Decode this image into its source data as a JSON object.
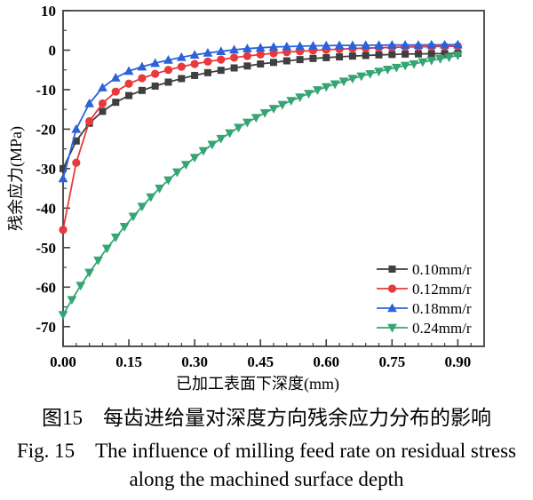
{
  "figure": {
    "caption_zh": "图15　每齿进给量对深度方向残余应力分布的影响",
    "caption_en_line1": "Fig. 15　The influence of milling feed rate on residual stress",
    "caption_en_line2": "along the machined surface depth"
  },
  "chart_data": {
    "type": "line",
    "title": "",
    "xlabel": "已加工表面下深度(mm)",
    "ylabel": "残余应力(MPa)",
    "xlim": [
      0,
      0.96
    ],
    "ylim": [
      -75,
      10
    ],
    "x_major_ticks": [
      0,
      0.15,
      0.3,
      0.45,
      0.6,
      0.75,
      0.9
    ],
    "x_tick_labels": [
      "0.00",
      "0.15",
      "0.30",
      "0.45",
      "0.60",
      "0.75",
      "0.90"
    ],
    "x_minor_step": 0.03,
    "y_major_ticks": [
      10,
      0,
      -10,
      -20,
      -30,
      -40,
      -50,
      -60,
      -70
    ],
    "y_tick_labels": [
      "10",
      "0",
      "-10",
      "-20",
      "-30",
      "-40",
      "-50",
      "-60",
      "-70"
    ],
    "y_minor_step": 5,
    "grid": false,
    "legend_position": "lower-right-inside",
    "axis_color": "#3f3f3f",
    "series": [
      {
        "name": "0.10mm/r",
        "color": "#3f3f3f",
        "marker": "square",
        "x": [
          0,
          0.03,
          0.06,
          0.09,
          0.12,
          0.15,
          0.18,
          0.21,
          0.24,
          0.27,
          0.3,
          0.33,
          0.36,
          0.39,
          0.42,
          0.45,
          0.48,
          0.51,
          0.54,
          0.57,
          0.6,
          0.63,
          0.66,
          0.69,
          0.72,
          0.75,
          0.78,
          0.81,
          0.84,
          0.87,
          0.9
        ],
        "y": [
          -30,
          -23,
          -18.5,
          -15.5,
          -13.2,
          -11.5,
          -10.2,
          -9.1,
          -8.1,
          -7.2,
          -6.4,
          -5.7,
          -5.1,
          -4.5,
          -4,
          -3.5,
          -3.1,
          -2.7,
          -2.4,
          -2.1,
          -1.9,
          -1.7,
          -1.5,
          -1.35,
          -1.2,
          -1.1,
          -1,
          -0.95,
          -0.9,
          -0.85,
          -0.8
        ]
      },
      {
        "name": "0.12mm/r",
        "color": "#e8393d",
        "marker": "circle",
        "x": [
          0,
          0.03,
          0.06,
          0.09,
          0.12,
          0.15,
          0.18,
          0.21,
          0.24,
          0.27,
          0.3,
          0.33,
          0.36,
          0.39,
          0.42,
          0.45,
          0.48,
          0.51,
          0.54,
          0.57,
          0.6,
          0.63,
          0.66,
          0.69,
          0.72,
          0.75,
          0.78,
          0.81,
          0.84,
          0.87,
          0.9
        ],
        "y": [
          -45.5,
          -28.5,
          -18,
          -13.5,
          -10.5,
          -8.5,
          -7.1,
          -6,
          -5,
          -4.2,
          -3.5,
          -2.9,
          -2.4,
          -1.9,
          -1.5,
          -1.1,
          -0.8,
          -0.5,
          -0.3,
          -0.1,
          0.1,
          0.25,
          0.4,
          0.5,
          0.6,
          0.7,
          0.8,
          0.85,
          0.9,
          0.95,
          1
        ]
      },
      {
        "name": "0.18mm/r",
        "color": "#2b62d9",
        "marker": "triangle-up",
        "x": [
          0,
          0.03,
          0.06,
          0.09,
          0.12,
          0.15,
          0.18,
          0.21,
          0.24,
          0.27,
          0.3,
          0.33,
          0.36,
          0.39,
          0.42,
          0.45,
          0.48,
          0.51,
          0.54,
          0.57,
          0.6,
          0.63,
          0.66,
          0.69,
          0.72,
          0.75,
          0.78,
          0.81,
          0.84,
          0.87,
          0.9
        ],
        "y": [
          -32.5,
          -20,
          -13.5,
          -9.5,
          -7,
          -5.3,
          -4.2,
          -3.3,
          -2.5,
          -1.8,
          -1.2,
          -0.7,
          -0.3,
          0.1,
          0.4,
          0.6,
          0.8,
          0.9,
          1,
          1.1,
          1.15,
          1.2,
          1.2,
          1.25,
          1.25,
          1.3,
          1.3,
          1.3,
          1.35,
          1.35,
          1.4
        ]
      },
      {
        "name": "0.24mm/r",
        "color": "#35a573",
        "marker": "triangle-down",
        "x": [
          0,
          0.02,
          0.04,
          0.06,
          0.08,
          0.1,
          0.12,
          0.14,
          0.16,
          0.18,
          0.2,
          0.22,
          0.24,
          0.26,
          0.28,
          0.3,
          0.32,
          0.34,
          0.36,
          0.38,
          0.4,
          0.42,
          0.44,
          0.46,
          0.48,
          0.5,
          0.52,
          0.54,
          0.56,
          0.58,
          0.6,
          0.62,
          0.64,
          0.66,
          0.68,
          0.7,
          0.72,
          0.74,
          0.76,
          0.78,
          0.8,
          0.82,
          0.84,
          0.86,
          0.88,
          0.9
        ],
        "y": [
          -67,
          -63.2,
          -59.6,
          -56.3,
          -53.2,
          -50.2,
          -47.4,
          -44.7,
          -42.1,
          -39.6,
          -37.2,
          -35,
          -32.9,
          -30.9,
          -29,
          -27.2,
          -25.5,
          -23.9,
          -22.4,
          -21,
          -19.6,
          -18.3,
          -17.1,
          -15.9,
          -14.8,
          -13.8,
          -12.8,
          -11.9,
          -11,
          -10.1,
          -9.3,
          -8.6,
          -7.9,
          -7.2,
          -6.6,
          -6,
          -5.4,
          -4.9,
          -4.4,
          -3.9,
          -3.5,
          -3,
          -2.6,
          -2.2,
          -1.8,
          -1.3
        ]
      }
    ]
  }
}
